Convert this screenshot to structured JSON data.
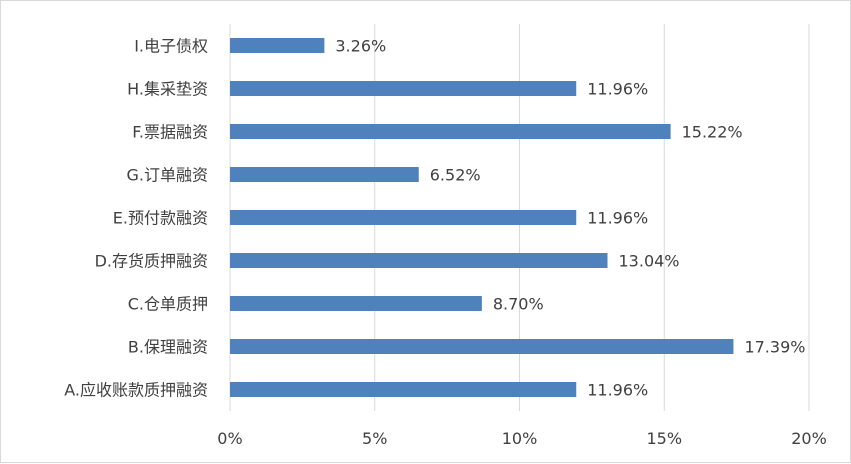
{
  "chart_data": {
    "type": "bar",
    "orientation": "horizontal",
    "categories": [
      "I.电子债权",
      "H.集采垫资",
      "F.票据融资",
      "G.订单融资",
      "E.预付款融资",
      "D.存货质押融资",
      "C.仓单质押",
      "B.保理融资",
      "A.应收账款质押融资"
    ],
    "values": [
      3.26,
      11.96,
      15.22,
      6.52,
      11.96,
      13.04,
      8.7,
      17.39,
      11.96
    ],
    "data_labels": [
      "3.26%",
      "11.96%",
      "15.22%",
      "6.52%",
      "11.96%",
      "13.04%",
      "8.70%",
      "17.39%",
      "11.96%"
    ],
    "xlim": [
      0,
      20
    ],
    "x_ticks": [
      0,
      5,
      10,
      15,
      20
    ],
    "x_tick_labels": [
      "0%",
      "5%",
      "10%",
      "15%",
      "20%"
    ],
    "grid": "vertical",
    "bar_color": "#4f81bd",
    "grid_color": "#d9d9d9",
    "text_color": "#404040",
    "title": "",
    "xlabel": "",
    "ylabel": ""
  }
}
